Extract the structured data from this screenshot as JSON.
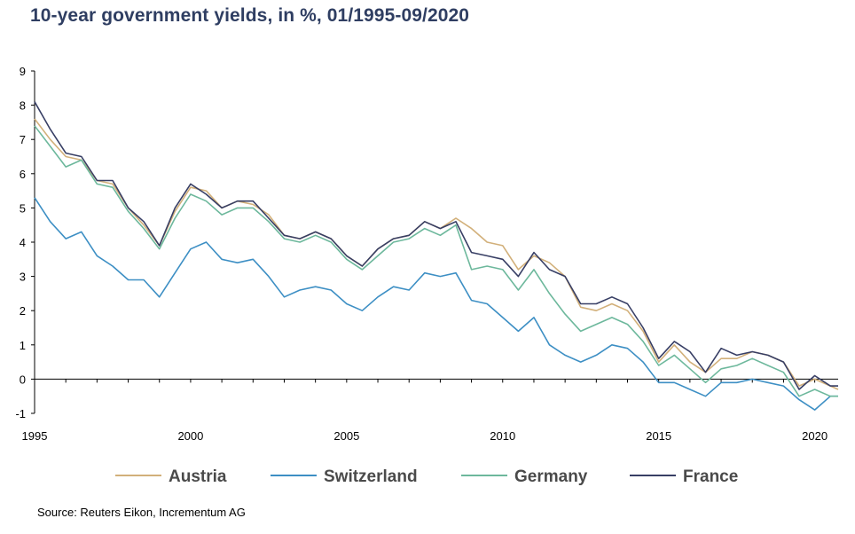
{
  "chart_data": {
    "type": "line",
    "title": "10-year government yields, in %, 01/1995-09/2020",
    "source": "Source: Reuters Eikon, Incrementum AG",
    "xlabel": "",
    "ylabel": "",
    "xlim": [
      1995,
      2020.75
    ],
    "ylim": [
      -1,
      9
    ],
    "x_ticks": [
      "1995",
      "2000",
      "2005",
      "2010",
      "2015",
      "2020"
    ],
    "y_ticks": [
      "-1",
      "0",
      "1",
      "2",
      "3",
      "4",
      "5",
      "6",
      "7",
      "8",
      "9"
    ],
    "grid": false,
    "legend_position": "bottom",
    "x": [
      1995.0,
      1995.5,
      1996.0,
      1996.5,
      1997.0,
      1997.5,
      1998.0,
      1998.5,
      1999.0,
      1999.5,
      2000.0,
      2000.5,
      2001.0,
      2001.5,
      2002.0,
      2002.5,
      2003.0,
      2003.5,
      2004.0,
      2004.5,
      2005.0,
      2005.5,
      2006.0,
      2006.5,
      2007.0,
      2007.5,
      2008.0,
      2008.5,
      2009.0,
      2009.5,
      2010.0,
      2010.5,
      2011.0,
      2011.5,
      2012.0,
      2012.5,
      2013.0,
      2013.5,
      2014.0,
      2014.5,
      2015.0,
      2015.5,
      2016.0,
      2016.5,
      2017.0,
      2017.5,
      2018.0,
      2018.5,
      2019.0,
      2019.5,
      2020.0,
      2020.5,
      2020.75
    ],
    "series": [
      {
        "name": "Austria",
        "color": "#d2b07a",
        "values": [
          7.6,
          7.0,
          6.5,
          6.4,
          5.8,
          5.7,
          5.0,
          4.5,
          3.9,
          4.9,
          5.6,
          5.5,
          5.0,
          5.2,
          5.1,
          4.8,
          4.2,
          4.1,
          4.3,
          4.1,
          3.6,
          3.3,
          3.8,
          4.1,
          4.2,
          4.6,
          4.4,
          4.7,
          4.4,
          4.0,
          3.9,
          3.2,
          3.6,
          3.4,
          3.0,
          2.1,
          2.0,
          2.2,
          2.0,
          1.4,
          0.5,
          1.0,
          0.5,
          0.2,
          0.6,
          0.6,
          0.8,
          0.7,
          0.5,
          -0.2,
          0.0,
          -0.2,
          -0.3
        ]
      },
      {
        "name": "Switzerland",
        "color": "#3d8fc4",
        "values": [
          5.3,
          4.6,
          4.1,
          4.3,
          3.6,
          3.3,
          2.9,
          2.9,
          2.4,
          3.1,
          3.8,
          4.0,
          3.5,
          3.4,
          3.5,
          3.0,
          2.4,
          2.6,
          2.7,
          2.6,
          2.2,
          2.0,
          2.4,
          2.7,
          2.6,
          3.1,
          3.0,
          3.1,
          2.3,
          2.2,
          1.8,
          1.4,
          1.8,
          1.0,
          0.7,
          0.5,
          0.7,
          1.0,
          0.9,
          0.5,
          -0.1,
          -0.1,
          -0.3,
          -0.5,
          -0.1,
          -0.1,
          0.0,
          -0.1,
          -0.2,
          -0.6,
          -0.9,
          -0.5,
          -0.5
        ]
      },
      {
        "name": "Germany",
        "color": "#6db89c",
        "values": [
          7.4,
          6.8,
          6.2,
          6.4,
          5.7,
          5.6,
          4.9,
          4.4,
          3.8,
          4.7,
          5.4,
          5.2,
          4.8,
          5.0,
          5.0,
          4.6,
          4.1,
          4.0,
          4.2,
          4.0,
          3.5,
          3.2,
          3.6,
          4.0,
          4.1,
          4.4,
          4.2,
          4.5,
          3.2,
          3.3,
          3.2,
          2.6,
          3.2,
          2.5,
          1.9,
          1.4,
          1.6,
          1.8,
          1.6,
          1.1,
          0.4,
          0.7,
          0.3,
          -0.1,
          0.3,
          0.4,
          0.6,
          0.4,
          0.2,
          -0.5,
          -0.3,
          -0.5,
          -0.5
        ]
      },
      {
        "name": "France",
        "color": "#383f65",
        "values": [
          8.1,
          7.3,
          6.6,
          6.5,
          5.8,
          5.8,
          5.0,
          4.6,
          3.9,
          5.0,
          5.7,
          5.4,
          5.0,
          5.2,
          5.2,
          4.7,
          4.2,
          4.1,
          4.3,
          4.1,
          3.6,
          3.3,
          3.8,
          4.1,
          4.2,
          4.6,
          4.4,
          4.6,
          3.7,
          3.6,
          3.5,
          3.0,
          3.7,
          3.2,
          3.0,
          2.2,
          2.2,
          2.4,
          2.2,
          1.5,
          0.6,
          1.1,
          0.8,
          0.2,
          0.9,
          0.7,
          0.8,
          0.7,
          0.5,
          -0.3,
          0.1,
          -0.2,
          -0.2
        ]
      }
    ]
  }
}
